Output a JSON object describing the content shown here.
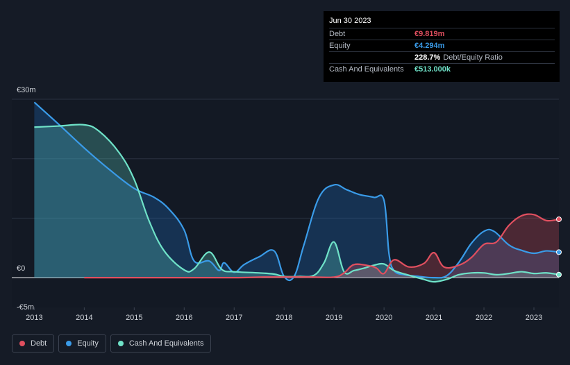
{
  "tooltip": {
    "date": "Jun 30 2023",
    "rows": [
      {
        "label": "Debt",
        "value": "€9.819m",
        "color": "#e04f5f"
      },
      {
        "label": "Equity",
        "value": "€4.294m",
        "color": "#3a9be8"
      },
      {
        "label": "",
        "value": "228.7%",
        "suffix": "Debt/Equity Ratio",
        "color": "#ffffff"
      },
      {
        "label": "Cash And Equivalents",
        "value": "€513.000k",
        "color": "#6fe2c8"
      }
    ]
  },
  "legend": [
    {
      "label": "Debt",
      "color": "#e04f5f"
    },
    {
      "label": "Equity",
      "color": "#3a9be8"
    },
    {
      "label": "Cash And Equivalents",
      "color": "#6fe2c8"
    }
  ],
  "chart_data": {
    "type": "area",
    "y_tick_labels": [
      "€30m",
      "€0",
      "-€5m"
    ],
    "ylim": [
      -5,
      30
    ],
    "xlim": [
      2012.55,
      2023.5
    ],
    "x_tick_labels": [
      "2013",
      "2014",
      "2015",
      "2016",
      "2017",
      "2018",
      "2019",
      "2020",
      "2021",
      "2022",
      "2023"
    ],
    "grid": true,
    "legend_position": "bottom-left",
    "series": [
      {
        "name": "Debt",
        "color": "#e04f5f",
        "x": [
          2014.0,
          2015.0,
          2016.0,
          2017.0,
          2017.6,
          2018.0,
          2018.5,
          2019.0,
          2019.2,
          2019.4,
          2019.7,
          2019.85,
          2020.0,
          2020.2,
          2020.5,
          2020.8,
          2021.0,
          2021.2,
          2021.5,
          2021.75,
          2022.0,
          2022.25,
          2022.5,
          2022.75,
          2023.0,
          2023.25,
          2023.5
        ],
        "y": [
          0.0,
          0.0,
          0.0,
          0.0,
          0.1,
          0.1,
          0.1,
          0.1,
          0.8,
          2.2,
          2.0,
          1.6,
          0.7,
          3.0,
          1.8,
          2.4,
          4.2,
          1.8,
          2.1,
          3.4,
          5.6,
          6.0,
          8.8,
          10.4,
          10.6,
          9.6,
          9.82
        ]
      },
      {
        "name": "Equity",
        "color": "#3a9be8",
        "x": [
          2013.0,
          2013.5,
          2014.0,
          2014.5,
          2015.0,
          2015.4,
          2015.7,
          2016.0,
          2016.2,
          2016.5,
          2016.7,
          2016.8,
          2017.0,
          2017.2,
          2017.5,
          2017.8,
          2018.0,
          2018.2,
          2018.4,
          2018.7,
          2019.0,
          2019.25,
          2019.5,
          2019.8,
          2020.0,
          2020.1,
          2020.2,
          2020.4,
          2020.7,
          2021.0,
          2021.25,
          2021.5,
          2021.75,
          2022.0,
          2022.2,
          2022.5,
          2022.75,
          2023.0,
          2023.25,
          2023.5
        ],
        "y": [
          29.5,
          25.7,
          21.8,
          18.2,
          15.0,
          13.5,
          11.5,
          8.0,
          2.8,
          2.8,
          1.2,
          2.5,
          0.9,
          2.2,
          3.5,
          4.5,
          0.2,
          0.2,
          5.6,
          13.5,
          15.6,
          14.8,
          14.0,
          13.5,
          13.0,
          4.0,
          1.2,
          0.5,
          0.2,
          0.0,
          0.3,
          2.6,
          5.8,
          7.8,
          7.8,
          5.5,
          4.6,
          4.1,
          4.5,
          4.29
        ]
      },
      {
        "name": "Cash And Equivalents",
        "color": "#6fe2c8",
        "x": [
          2013.0,
          2013.5,
          2014.0,
          2014.3,
          2014.7,
          2015.0,
          2015.3,
          2015.6,
          2016.0,
          2016.2,
          2016.5,
          2016.75,
          2017.0,
          2017.5,
          2017.8,
          2018.0,
          2018.3,
          2018.6,
          2018.8,
          2019.0,
          2019.2,
          2019.4,
          2019.6,
          2019.8,
          2020.0,
          2020.2,
          2020.5,
          2020.8,
          2021.0,
          2021.25,
          2021.5,
          2021.75,
          2022.0,
          2022.25,
          2022.5,
          2022.75,
          2023.0,
          2023.25,
          2023.5
        ],
        "y": [
          25.3,
          25.5,
          25.7,
          24.6,
          21.0,
          16.5,
          9.5,
          4.5,
          1.3,
          1.5,
          4.3,
          1.4,
          1.0,
          0.8,
          0.6,
          0.2,
          0.2,
          0.4,
          2.5,
          6.0,
          1.0,
          1.2,
          1.6,
          2.1,
          2.3,
          1.2,
          0.4,
          -0.3,
          -0.7,
          -0.3,
          0.5,
          0.8,
          0.8,
          0.5,
          0.7,
          1.0,
          0.7,
          0.8,
          0.51
        ]
      }
    ]
  }
}
